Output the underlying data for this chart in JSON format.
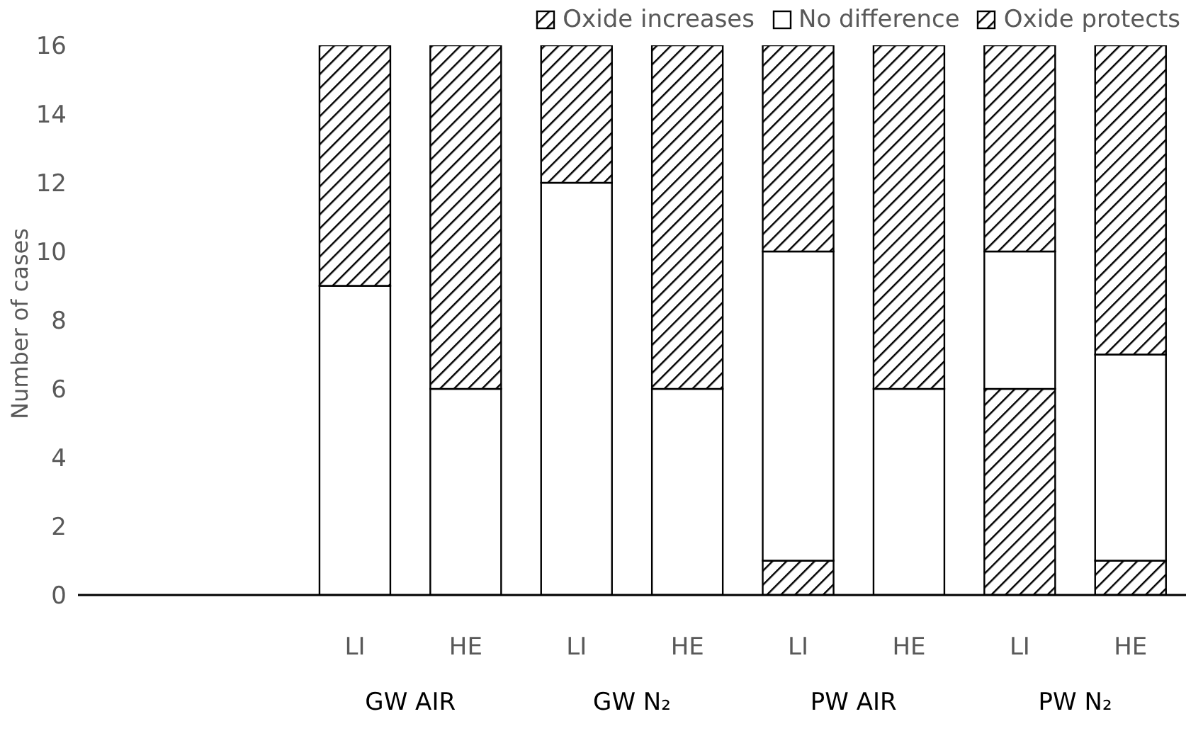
{
  "chart_data": {
    "type": "bar",
    "stacked": true,
    "ylabel": "Number of cases",
    "categories": [
      null,
      null,
      "LI",
      "HE",
      "LI",
      "HE",
      "LI",
      "HE",
      "LI",
      "HE"
    ],
    "annotations": [
      "GW AIR",
      "GW N₂",
      "PW AIR",
      "PW N₂"
    ],
    "series": [
      {
        "name": "Oxide increases",
        "color": "#000000",
        "values": [
          null,
          null,
          0,
          0,
          0,
          0,
          1,
          0,
          6,
          1
        ]
      },
      {
        "name": "No difference",
        "color": "#ffffff",
        "values": [
          null,
          null,
          9,
          6,
          12,
          6,
          9,
          6,
          4,
          6
        ]
      },
      {
        "name": "Oxide protects",
        "color": "#000000",
        "values": [
          null,
          null,
          7,
          10,
          4,
          10,
          6,
          10,
          6,
          9
        ]
      }
    ],
    "ylim": [
      0,
      16
    ],
    "yticks": [
      0,
      2,
      4,
      6,
      8,
      10,
      12,
      14,
      16
    ],
    "grid": false,
    "legend": "top right"
  }
}
